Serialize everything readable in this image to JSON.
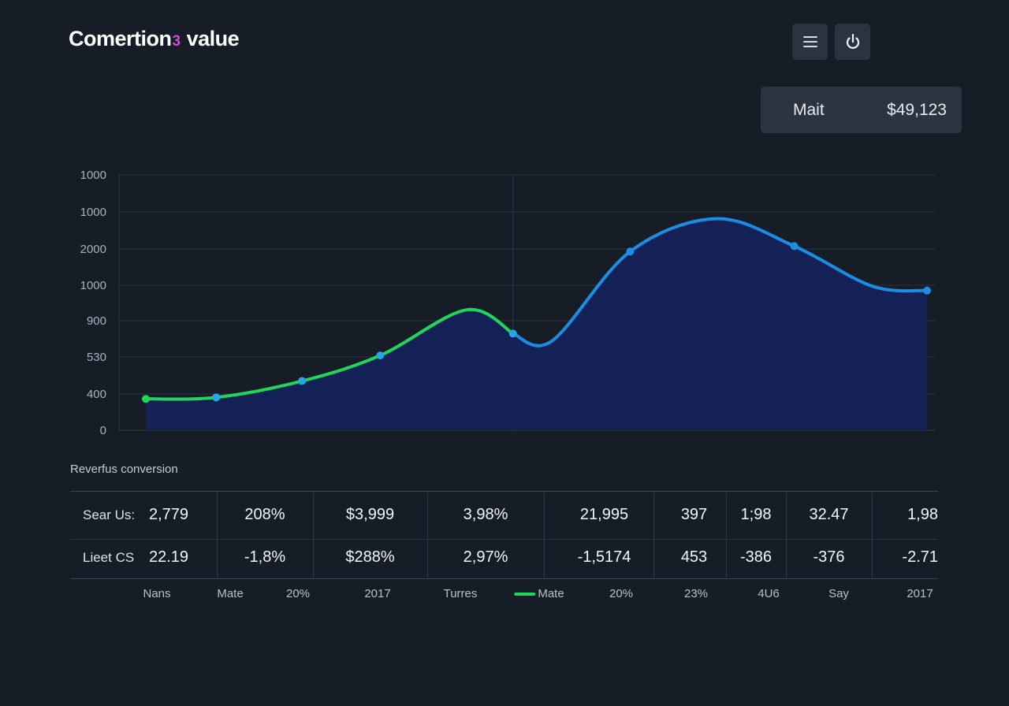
{
  "header": {
    "title_part1": "Comertion",
    "title_accent": "3",
    "title_part2": "value"
  },
  "summary": {
    "label": "Mait",
    "value": "$49,123"
  },
  "icons": {
    "menu": "menu-icon",
    "power": "power-icon"
  },
  "colors": {
    "background": "#161d27",
    "green_line": "#1fd65a",
    "blue_line": "#1b8de3",
    "area_fill": "#13225a",
    "accent_pink": "#d34bd8"
  },
  "chart_data": {
    "type": "area",
    "y_tick_labels": [
      "1000",
      "1000",
      "2000",
      "1000",
      "900",
      "530",
      "400",
      "0"
    ],
    "y_tick_values": [
      7,
      6,
      5,
      4,
      3,
      2,
      1,
      0
    ],
    "ylim": [
      0,
      7
    ],
    "grid": true,
    "series": [
      {
        "color": "#1fd65a",
        "x": [
          0,
          0.09,
          0.2,
          0.3,
          0.41,
          0.47
        ],
        "y": [
          0.86,
          0.9,
          1.35,
          2.05,
          3.3,
          2.65
        ]
      },
      {
        "color": "#1b8de3",
        "x": [
          0.47,
          0.52,
          0.62,
          0.73,
          0.83,
          0.93,
          1.0
        ],
        "y": [
          2.65,
          2.45,
          4.9,
          5.8,
          5.05,
          3.95,
          3.83
        ]
      }
    ],
    "markers": [
      {
        "x": 0,
        "y": 0.86,
        "color": "#1fd65a"
      },
      {
        "x": 0.09,
        "y": 0.9,
        "color": "#27a7e0"
      },
      {
        "x": 0.2,
        "y": 1.35,
        "color": "#27a7e0"
      },
      {
        "x": 0.3,
        "y": 2.05,
        "color": "#27a7e0"
      },
      {
        "x": 0.47,
        "y": 2.65,
        "color": "#27a7e0"
      },
      {
        "x": 0.62,
        "y": 4.9,
        "color": "#1b8de3"
      },
      {
        "x": 0.83,
        "y": 5.05,
        "color": "#1b8de3"
      },
      {
        "x": 1.0,
        "y": 3.83,
        "color": "#1b8de3"
      }
    ],
    "vertical_marker_x": 0.47
  },
  "caption": "Reverfus conversion",
  "table": {
    "rows": [
      {
        "label": "Sear Us:",
        "cells": [
          "2,779",
          "208%",
          "$3,999",
          "3,98%",
          "21,995",
          "397",
          "1;98",
          "32.47",
          "1,98"
        ]
      },
      {
        "label": "Lieet CS",
        "cells": [
          "22.19",
          "-1,8%",
          "$288%",
          "2,97%",
          "-1,5174",
          "453",
          "-386",
          "-376",
          "-2.71"
        ]
      }
    ]
  },
  "legend": {
    "items": [
      {
        "label": "Nans"
      },
      {
        "label": "Mate"
      },
      {
        "label": "20%"
      },
      {
        "label": "2017"
      },
      {
        "label": "Turres"
      },
      {
        "label": "Mate"
      },
      {
        "label": "20%"
      },
      {
        "label": "23%"
      },
      {
        "label": "4U6"
      },
      {
        "label": "Say"
      },
      {
        "label": "2017"
      }
    ]
  }
}
